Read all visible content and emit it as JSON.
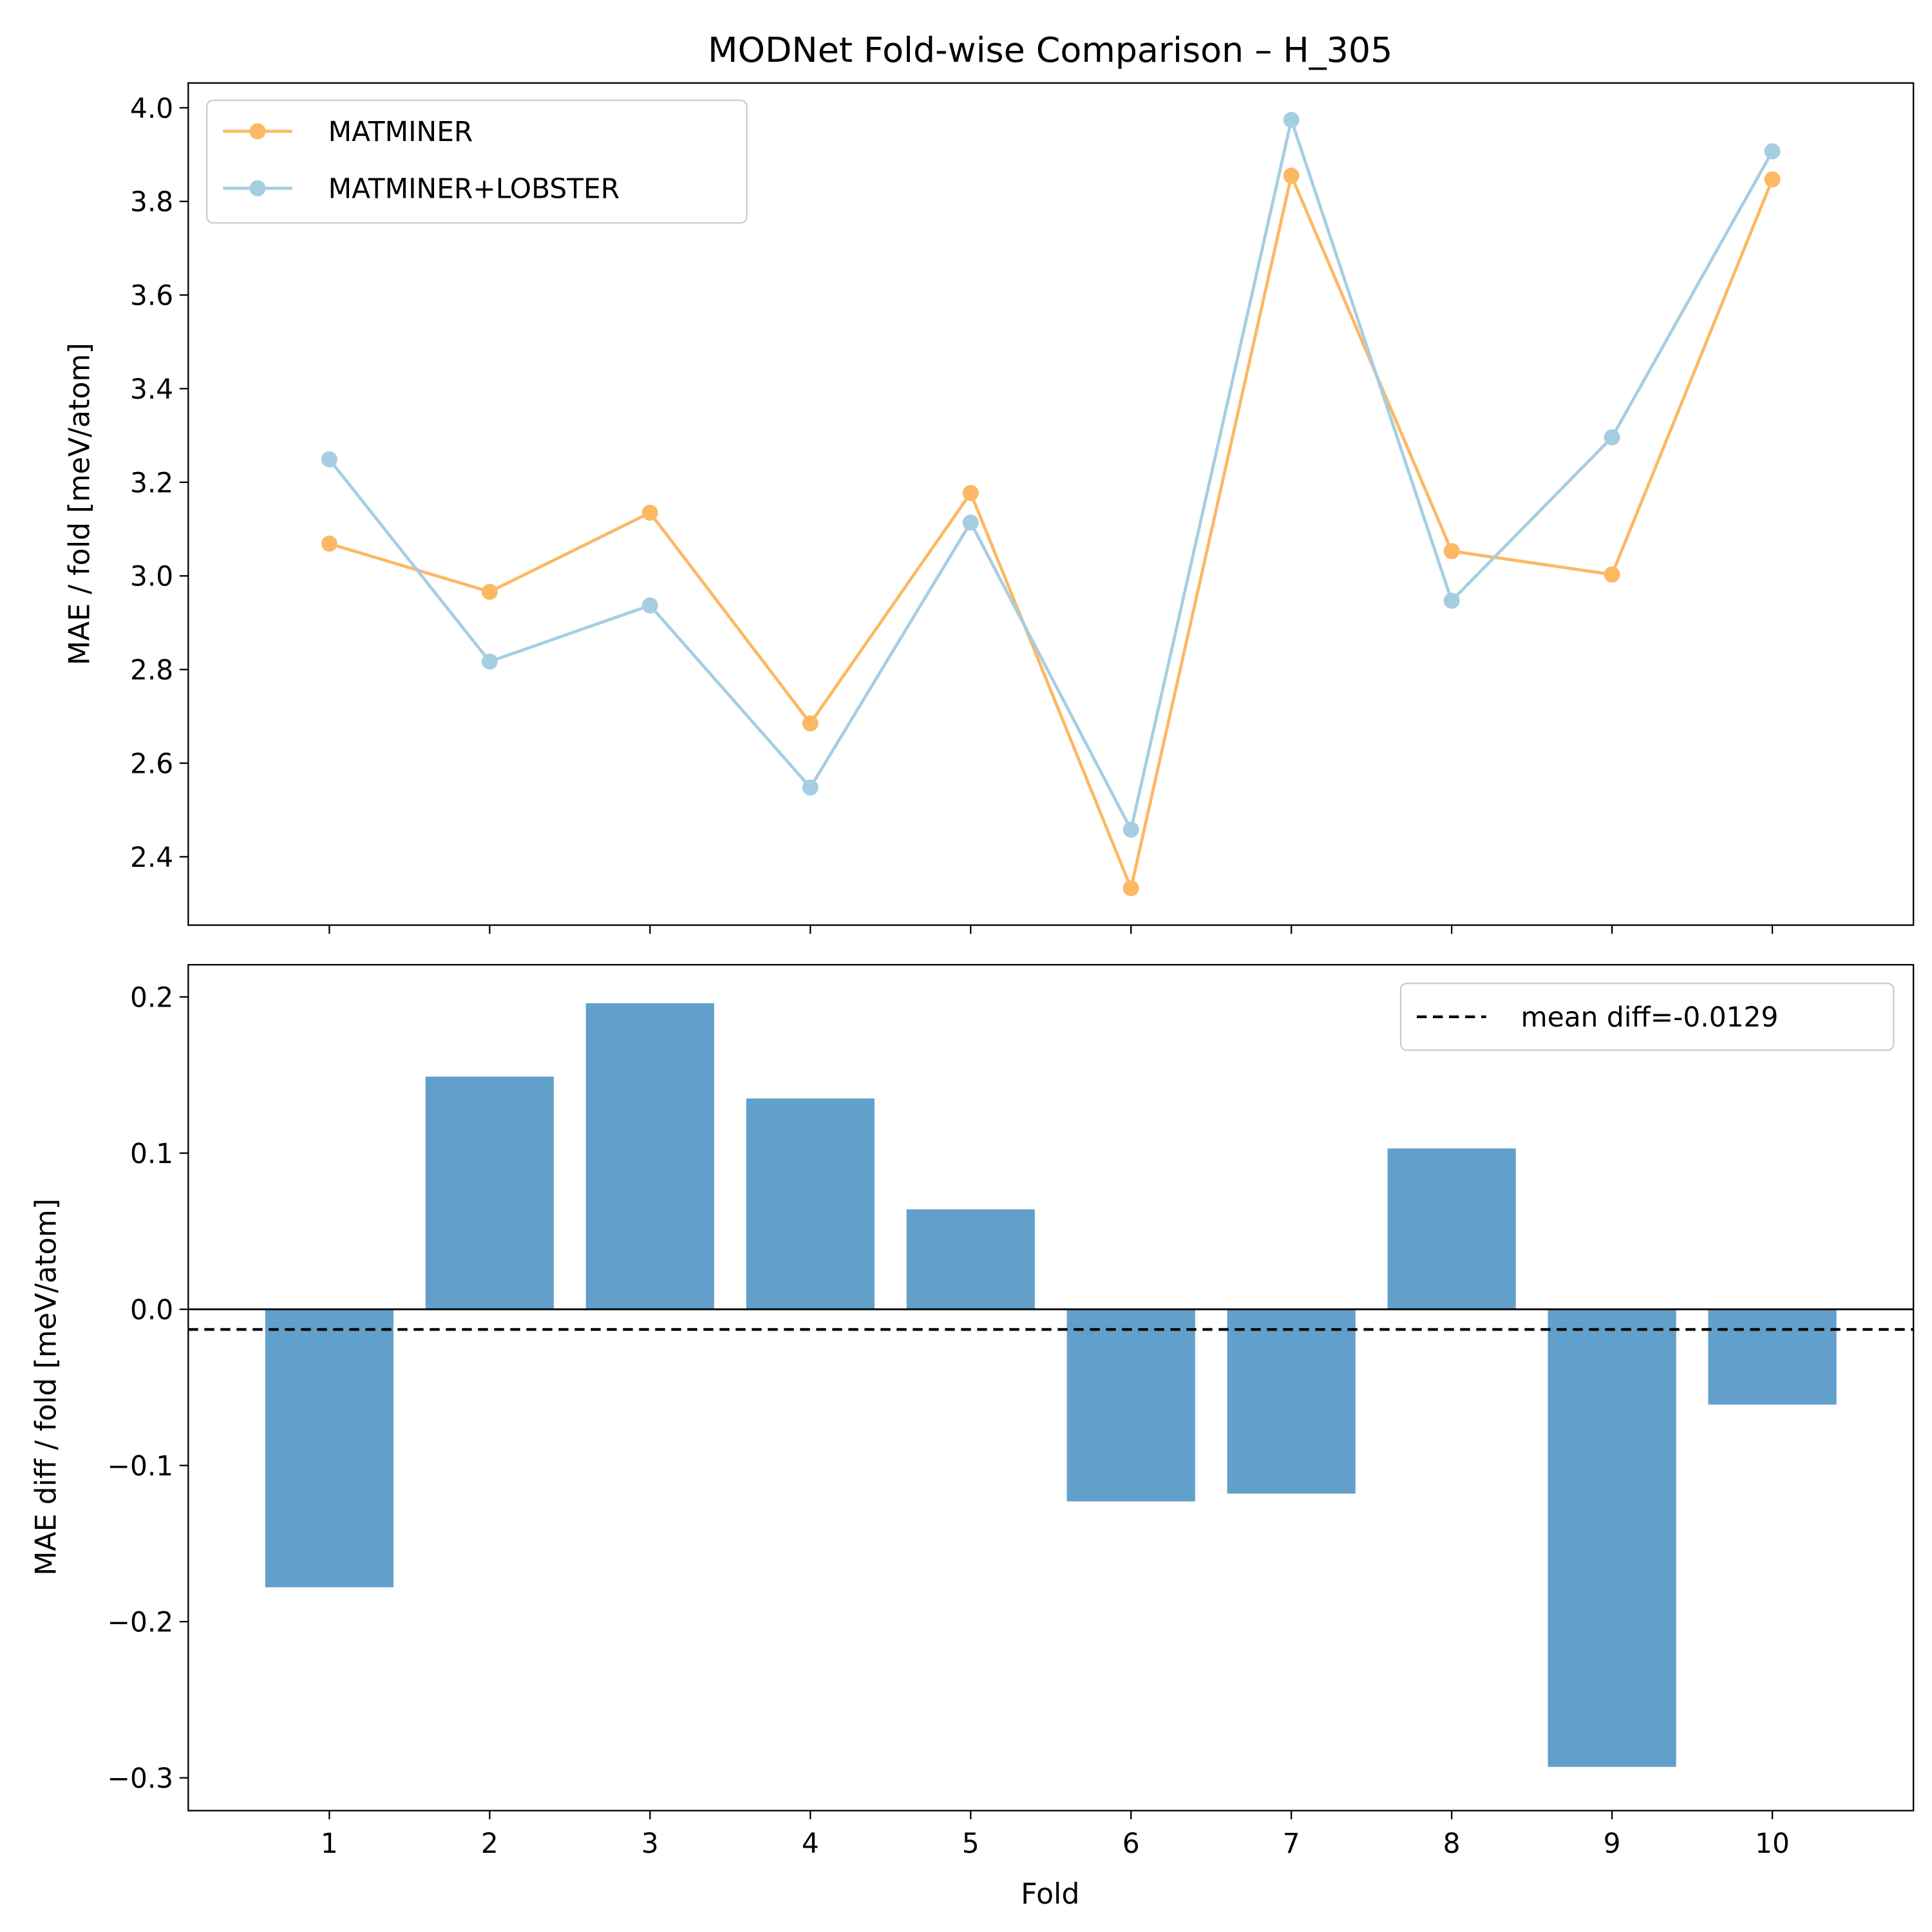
{
  "chart_data": [
    {
      "type": "line",
      "title": "MODNet Fold-wise Comparison – H_305",
      "xlabel": "",
      "ylabel": "MAE / fold [meV/atom]",
      "x": [
        1,
        2,
        3,
        4,
        5,
        6,
        7,
        8,
        9,
        10
      ],
      "xlim": [
        0.12,
        10.88
      ],
      "ylim": [
        2.254,
        4.053
      ],
      "yticks": [
        2.4,
        2.6,
        2.8,
        3.0,
        3.2,
        3.4,
        3.6,
        3.8,
        4.0
      ],
      "ytick_labels": [
        "2.4",
        "2.6",
        "2.8",
        "3.0",
        "3.2",
        "3.4",
        "3.6",
        "3.8",
        "4.0"
      ],
      "grid": false,
      "legend_position": "upper-left",
      "series": [
        {
          "name": "MATMINER",
          "color": "#fdb863",
          "values": [
            3.069,
            2.966,
            3.135,
            2.685,
            3.177,
            2.333,
            3.855,
            3.053,
            3.003,
            3.847
          ]
        },
        {
          "name": "MATMINER+LOBSTER",
          "color": "#a6cee3",
          "values": [
            3.249,
            2.817,
            2.937,
            2.548,
            3.114,
            2.458,
            3.974,
            2.947,
            3.296,
            3.907
          ]
        }
      ]
    },
    {
      "type": "bar",
      "xlabel": "Fold",
      "ylabel": "MAE diff / fold [meV/atom]",
      "categories": [
        "1",
        "2",
        "3",
        "4",
        "5",
        "6",
        "7",
        "8",
        "9",
        "10"
      ],
      "values": [
        -0.178,
        0.149,
        0.196,
        0.135,
        0.064,
        -0.123,
        -0.118,
        0.103,
        -0.293,
        -0.061
      ],
      "bar_color": "#62a0cb",
      "xlim": [
        0.12,
        10.88
      ],
      "ylim": [
        -0.321,
        0.2206
      ],
      "yticks": [
        -0.3,
        -0.2,
        -0.1,
        0.0,
        0.1,
        0.2
      ],
      "ytick_labels": [
        "−0.3",
        "−0.2",
        "−0.1",
        "0.0",
        "0.1",
        "0.2"
      ],
      "mean_line": {
        "value": -0.0129,
        "label": "mean diff=-0.0129",
        "style": "dashed",
        "color": "#000000"
      },
      "zero_line": true,
      "grid": false,
      "legend_position": "upper-right"
    }
  ]
}
